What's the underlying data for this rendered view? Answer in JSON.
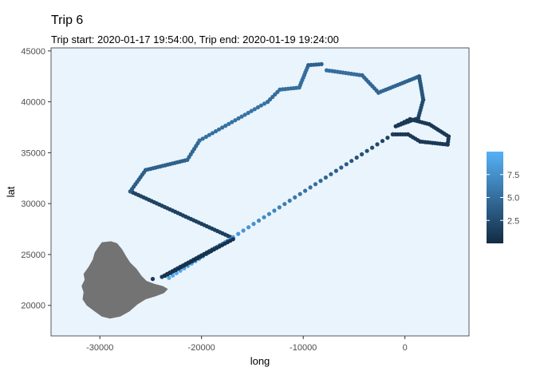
{
  "chart_data": {
    "type": "scatter",
    "title": "Trip 6",
    "subtitle": "Trip start: 2020-01-17 19:54:00, Trip end: 2020-01-19 19:24:00",
    "xlabel": "long",
    "ylabel": "lat",
    "xlim": [
      -34800,
      6300
    ],
    "ylim": [
      17000,
      45300
    ],
    "x_ticks": [
      -30000,
      -20000,
      -10000,
      0
    ],
    "x_tick_labels": [
      "-30000",
      "-20000",
      "-10000",
      "0"
    ],
    "y_ticks": [
      20000,
      25000,
      30000,
      35000,
      40000,
      45000
    ],
    "y_tick_labels": [
      "20000",
      "25000",
      "30000",
      "35000",
      "40000",
      "45000"
    ],
    "panel_background": "#eaf4fd",
    "grid": false,
    "color_scale": {
      "low": "#132b43",
      "high": "#56b1f7",
      "domain": [
        0,
        10
      ],
      "breaks": [
        2.5,
        5.0,
        7.5
      ],
      "break_labels": [
        "2.5",
        "5.0",
        "7.5"
      ],
      "legend_position": "right"
    },
    "island_color": "#737373",
    "island_outline": [
      [
        -29800,
        26200
      ],
      [
        -28900,
        26300
      ],
      [
        -28300,
        26100
      ],
      [
        -27800,
        25500
      ],
      [
        -27400,
        24800
      ],
      [
        -27000,
        24200
      ],
      [
        -26400,
        23600
      ],
      [
        -25900,
        22900
      ],
      [
        -25400,
        22400
      ],
      [
        -24600,
        22100
      ],
      [
        -23800,
        21900
      ],
      [
        -23300,
        21600
      ],
      [
        -23700,
        21200
      ],
      [
        -24500,
        20900
      ],
      [
        -25500,
        20600
      ],
      [
        -26300,
        20100
      ],
      [
        -27100,
        19400
      ],
      [
        -28000,
        18900
      ],
      [
        -29000,
        18700
      ],
      [
        -29800,
        18900
      ],
      [
        -30500,
        19400
      ],
      [
        -31300,
        20000
      ],
      [
        -31700,
        20600
      ],
      [
        -31600,
        21300
      ],
      [
        -31800,
        21900
      ],
      [
        -31500,
        22500
      ],
      [
        -31600,
        23100
      ],
      [
        -31100,
        23800
      ],
      [
        -30700,
        24500
      ],
      [
        -30500,
        25200
      ],
      [
        -30100,
        25800
      ]
    ],
    "path_segments": [
      {
        "from": [
          -23900,
          22800
        ],
        "to": [
          -16900,
          26600
        ],
        "n": 28,
        "v0": 1.0,
        "v1": 1.5
      },
      {
        "from": [
          -16900,
          26600
        ],
        "to": [
          -27000,
          31200
        ],
        "n": 40,
        "v0": 1.5,
        "v1": 1.8
      },
      {
        "from": [
          -27000,
          31200
        ],
        "to": [
          -25500,
          33300
        ],
        "n": 10,
        "v0": 3.5,
        "v1": 4.0
      },
      {
        "from": [
          -25500,
          33300
        ],
        "to": [
          -21400,
          34300
        ],
        "n": 18,
        "v0": 4.0,
        "v1": 4.0
      },
      {
        "from": [
          -21400,
          34300
        ],
        "to": [
          -20200,
          36200
        ],
        "n": 8,
        "v0": 4.5,
        "v1": 4.5
      },
      {
        "from": [
          -20200,
          36200
        ],
        "to": [
          -13500,
          40000
        ],
        "n": 22,
        "v0": 5.0,
        "v1": 5.5
      },
      {
        "from": [
          -13500,
          40000
        ],
        "to": [
          -12300,
          41200
        ],
        "n": 6,
        "v0": 5.0,
        "v1": 5.0
      },
      {
        "from": [
          -12300,
          41200
        ],
        "to": [
          -10400,
          41400
        ],
        "n": 8,
        "v0": 5.0,
        "v1": 5.0
      },
      {
        "from": [
          -10400,
          41400
        ],
        "to": [
          -9500,
          43600
        ],
        "n": 10,
        "v0": 5.0,
        "v1": 5.0
      },
      {
        "from": [
          -9500,
          43600
        ],
        "to": [
          -8200,
          43700
        ],
        "n": 6,
        "v0": 4.0,
        "v1": 4.0
      },
      {
        "from": [
          -7700,
          43100
        ],
        "to": [
          -4200,
          42600
        ],
        "n": 14,
        "v0": 5.0,
        "v1": 5.0
      },
      {
        "from": [
          -4200,
          42600
        ],
        "to": [
          -2600,
          40900
        ],
        "n": 9,
        "v0": 4.5,
        "v1": 4.5
      },
      {
        "from": [
          -2600,
          40900
        ],
        "to": [
          1400,
          42500
        ],
        "n": 18,
        "v0": 4.5,
        "v1": 4.0
      },
      {
        "from": [
          1400,
          42500
        ],
        "to": [
          1800,
          40200
        ],
        "n": 11,
        "v0": 3.5,
        "v1": 3.0
      },
      {
        "from": [
          1800,
          40200
        ],
        "to": [
          1300,
          38400
        ],
        "n": 8,
        "v0": 2.5,
        "v1": 2.0
      },
      {
        "from": [
          1300,
          38400
        ],
        "to": [
          -900,
          37600
        ],
        "n": 10,
        "v0": 1.5,
        "v1": 1.0
      },
      {
        "from": [
          -900,
          37600
        ],
        "to": [
          500,
          38300
        ],
        "n": 6,
        "v0": 1.0,
        "v1": 1.0
      },
      {
        "from": [
          500,
          38300
        ],
        "to": [
          2400,
          37800
        ],
        "n": 9,
        "v0": 1.0,
        "v1": 1.0
      },
      {
        "from": [
          2400,
          37800
        ],
        "to": [
          4300,
          36600
        ],
        "n": 10,
        "v0": 1.0,
        "v1": 1.0
      },
      {
        "from": [
          4300,
          36600
        ],
        "to": [
          4200,
          35800
        ],
        "n": 4,
        "v0": 1.0,
        "v1": 1.0
      },
      {
        "from": [
          4200,
          35800
        ],
        "to": [
          1500,
          36100
        ],
        "n": 12,
        "v0": 1.0,
        "v1": 1.0
      },
      {
        "from": [
          1500,
          36100
        ],
        "to": [
          300,
          36800
        ],
        "n": 6,
        "v0": 1.0,
        "v1": 1.0
      },
      {
        "from": [
          300,
          36800
        ],
        "to": [
          -1200,
          36800
        ],
        "n": 7,
        "v0": 1.0,
        "v1": 1.0
      },
      {
        "from": [
          -1200,
          36800
        ],
        "to": [
          -16900,
          26700
        ],
        "n": 32,
        "v0": 1.5,
        "v1": 8.5
      },
      {
        "from": [
          -16900,
          26700
        ],
        "to": [
          -23200,
          22700
        ],
        "n": 18,
        "v0": 8.5,
        "v1": 9.5
      },
      {
        "from": [
          -23600,
          22900
        ],
        "to": [
          -16900,
          26500
        ],
        "n": 26,
        "v0": 0.5,
        "v1": 0.5
      },
      {
        "from": [
          -24800,
          22600
        ],
        "to": [
          -24800,
          22600
        ],
        "n": 1,
        "v0": 1.0,
        "v1": 1.0
      }
    ]
  }
}
